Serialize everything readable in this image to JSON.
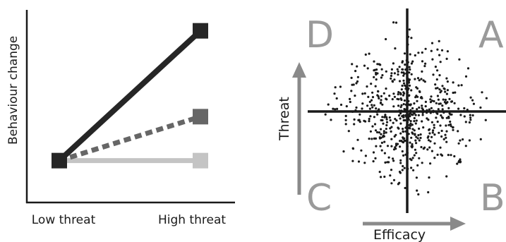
{
  "left_chart": {
    "ylabel": "Behaviour change",
    "x_categories": [
      "Low threat",
      "High threat"
    ]
  },
  "right_chart": {
    "quadrants": {
      "top_left": "D",
      "top_right": "A",
      "bottom_left": "C",
      "bottom_right": "B"
    },
    "x_axis_label": "Efficacy",
    "y_axis_label": "Threat"
  },
  "colors": {
    "axis": "#1a1a1a",
    "series_high": "#262626",
    "series_mid": "#666666",
    "series_low": "#c4c4c4",
    "quadrant_letters": "#9a9a9a",
    "arrows": "#8a8a8a",
    "dots": "#1a1a1a"
  },
  "chart_data": [
    {
      "type": "line",
      "x": [
        "Low threat",
        "High threat"
      ],
      "ylabel": "Behaviour change",
      "series": [
        {
          "style": "solid-dark",
          "values": [
            1,
            4.1
          ]
        },
        {
          "style": "dashed-mid",
          "values": [
            1,
            2.05
          ]
        },
        {
          "style": "solid-light",
          "values": [
            1,
            1
          ]
        }
      ],
      "ylim": [
        0,
        4.6
      ]
    },
    {
      "type": "scatter",
      "xlabel": "Efficacy",
      "ylabel": "Threat",
      "distribution": "dense diamond-shaped cloud of points centred on the axis crossing",
      "quadrants": [
        "A",
        "B",
        "C",
        "D"
      ]
    }
  ]
}
